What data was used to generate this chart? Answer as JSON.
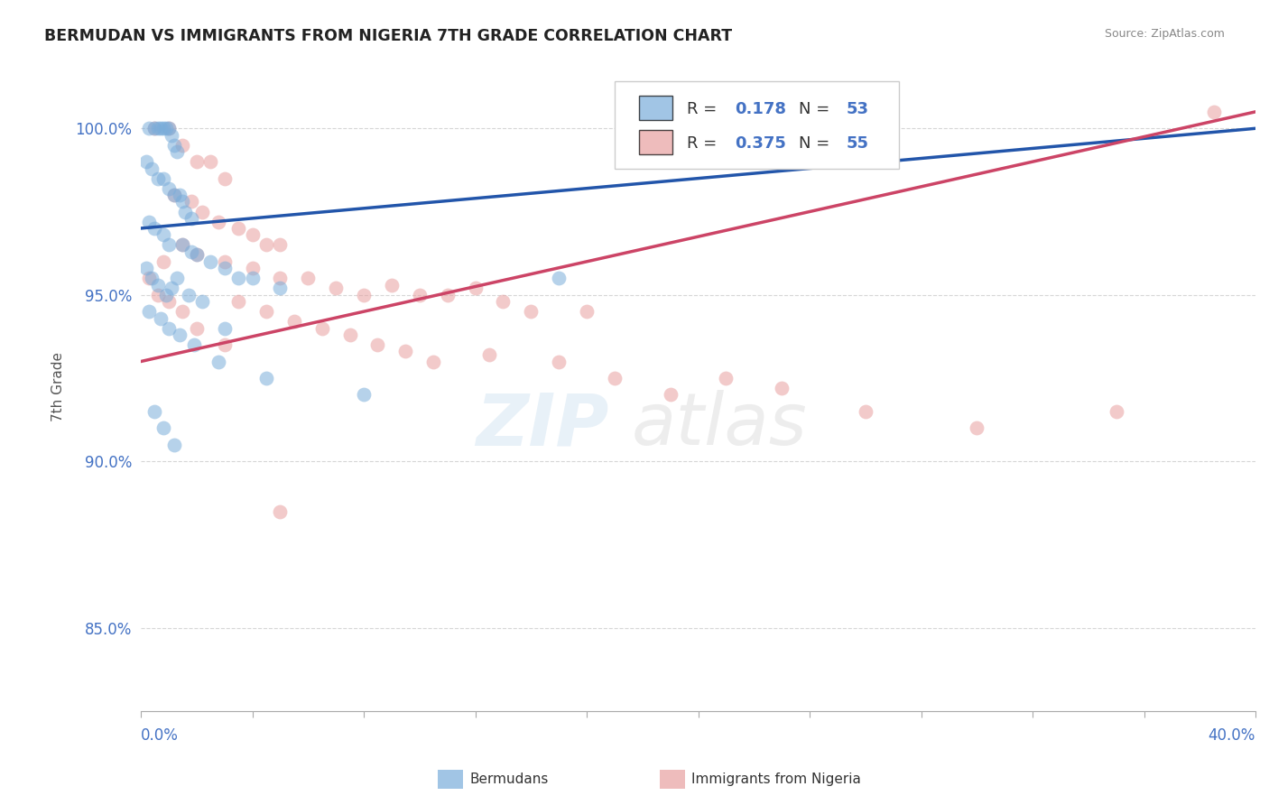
{
  "title": "BERMUDAN VS IMMIGRANTS FROM NIGERIA 7TH GRADE CORRELATION CHART",
  "source": "Source: ZipAtlas.com",
  "ylabel": "7th Grade",
  "xmin": 0.0,
  "xmax": 40.0,
  "ymin": 82.5,
  "ymax": 102.0,
  "yticks": [
    85.0,
    90.0,
    95.0,
    100.0
  ],
  "ytick_labels": [
    "85.0%",
    "90.0%",
    "95.0%",
    "100.0%"
  ],
  "blue_R": 0.178,
  "blue_N": 53,
  "pink_R": 0.375,
  "pink_N": 55,
  "blue_color": "#7aadda",
  "pink_color": "#e8a0a0",
  "blue_line_color": "#2255aa",
  "pink_line_color": "#cc4466",
  "legend_label_blue": "Bermudans",
  "legend_label_pink": "Immigrants from Nigeria",
  "blue_x": [
    0.3,
    0.5,
    0.6,
    0.7,
    0.8,
    0.9,
    1.0,
    1.1,
    1.2,
    1.3,
    0.2,
    0.4,
    0.6,
    0.8,
    1.0,
    1.2,
    1.4,
    1.5,
    1.6,
    1.8,
    0.3,
    0.5,
    0.8,
    1.0,
    1.5,
    1.8,
    2.0,
    2.5,
    3.0,
    3.5,
    0.2,
    0.4,
    0.6,
    0.9,
    1.1,
    1.3,
    1.7,
    2.2,
    4.0,
    5.0,
    0.3,
    0.7,
    1.0,
    1.4,
    1.9,
    2.8,
    4.5,
    8.0,
    15.0,
    3.0,
    0.5,
    0.8,
    1.2
  ],
  "blue_y": [
    100.0,
    100.0,
    100.0,
    100.0,
    100.0,
    100.0,
    100.0,
    99.8,
    99.5,
    99.3,
    99.0,
    98.8,
    98.5,
    98.5,
    98.2,
    98.0,
    98.0,
    97.8,
    97.5,
    97.3,
    97.2,
    97.0,
    96.8,
    96.5,
    96.5,
    96.3,
    96.2,
    96.0,
    95.8,
    95.5,
    95.8,
    95.5,
    95.3,
    95.0,
    95.2,
    95.5,
    95.0,
    94.8,
    95.5,
    95.2,
    94.5,
    94.3,
    94.0,
    93.8,
    93.5,
    93.0,
    92.5,
    92.0,
    95.5,
    94.0,
    91.5,
    91.0,
    90.5
  ],
  "pink_x": [
    0.5,
    1.0,
    1.5,
    2.0,
    2.5,
    3.0,
    1.2,
    1.8,
    2.2,
    2.8,
    3.5,
    4.0,
    4.5,
    5.0,
    0.8,
    1.5,
    2.0,
    3.0,
    4.0,
    5.0,
    6.0,
    7.0,
    8.0,
    9.0,
    10.0,
    11.0,
    12.0,
    13.0,
    14.0,
    16.0,
    3.5,
    4.5,
    5.5,
    6.5,
    7.5,
    8.5,
    9.5,
    10.5,
    12.5,
    15.0,
    17.0,
    19.0,
    21.0,
    23.0,
    26.0,
    30.0,
    35.0,
    0.3,
    0.6,
    1.0,
    1.5,
    2.0,
    3.0,
    5.0,
    38.5
  ],
  "pink_y": [
    100.0,
    100.0,
    99.5,
    99.0,
    99.0,
    98.5,
    98.0,
    97.8,
    97.5,
    97.2,
    97.0,
    96.8,
    96.5,
    96.5,
    96.0,
    96.5,
    96.2,
    96.0,
    95.8,
    95.5,
    95.5,
    95.2,
    95.0,
    95.3,
    95.0,
    95.0,
    95.2,
    94.8,
    94.5,
    94.5,
    94.8,
    94.5,
    94.2,
    94.0,
    93.8,
    93.5,
    93.3,
    93.0,
    93.2,
    93.0,
    92.5,
    92.0,
    92.5,
    92.2,
    91.5,
    91.0,
    91.5,
    95.5,
    95.0,
    94.8,
    94.5,
    94.0,
    93.5,
    88.5,
    100.5
  ]
}
